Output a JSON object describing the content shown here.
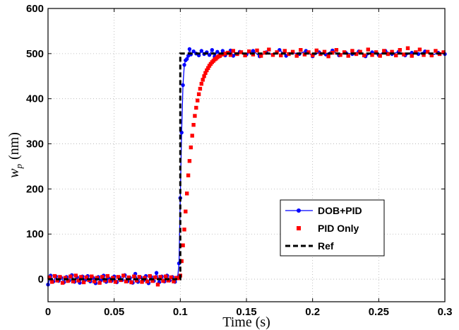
{
  "chart_data": {
    "type": "line",
    "title": "",
    "xlabel": "Time (s)",
    "ylabel_main": "w",
    "ylabel_sub": "p",
    "ylabel_unit": "(nm)",
    "xlim": [
      0,
      0.3
    ],
    "ylim": [
      -50,
      600
    ],
    "x_ticks": [
      0,
      0.05,
      0.1,
      0.15,
      0.2,
      0.25,
      0.3
    ],
    "x_tick_labels": [
      "0",
      "0.05",
      "0.1",
      "0.15",
      "0.2",
      "0.25",
      "0.3"
    ],
    "y_ticks": [
      0,
      100,
      200,
      300,
      400,
      500,
      600
    ],
    "y_tick_labels": [
      "0",
      "100",
      "200",
      "300",
      "400",
      "500",
      "600"
    ],
    "grid": true,
    "legend_position": "lower-right",
    "series": [
      {
        "name": "DOB+PID",
        "color": "#0000ff",
        "style": "solid-line-with-dots",
        "points": [
          [
            0.0,
            -12
          ],
          [
            0.002,
            8
          ],
          [
            0.004,
            -5
          ],
          [
            0.006,
            6
          ],
          [
            0.008,
            -4
          ],
          [
            0.01,
            3
          ],
          [
            0.012,
            -7
          ],
          [
            0.014,
            5
          ],
          [
            0.016,
            -3
          ],
          [
            0.018,
            9
          ],
          [
            0.02,
            -6
          ],
          [
            0.022,
            4
          ],
          [
            0.024,
            -8
          ],
          [
            0.026,
            6
          ],
          [
            0.028,
            -2
          ],
          [
            0.03,
            7
          ],
          [
            0.032,
            -5
          ],
          [
            0.034,
            3
          ],
          [
            0.036,
            -9
          ],
          [
            0.038,
            5
          ],
          [
            0.04,
            -3
          ],
          [
            0.042,
            8
          ],
          [
            0.044,
            -6
          ],
          [
            0.046,
            2
          ],
          [
            0.048,
            -4
          ],
          [
            0.05,
            6
          ],
          [
            0.052,
            -7
          ],
          [
            0.054,
            4
          ],
          [
            0.056,
            -2
          ],
          [
            0.058,
            9
          ],
          [
            0.06,
            -5
          ],
          [
            0.062,
            3
          ],
          [
            0.064,
            -8
          ],
          [
            0.066,
            12
          ],
          [
            0.068,
            -6
          ],
          [
            0.07,
            4
          ],
          [
            0.072,
            -3
          ],
          [
            0.074,
            7
          ],
          [
            0.076,
            -9
          ],
          [
            0.078,
            5
          ],
          [
            0.08,
            -4
          ],
          [
            0.082,
            14
          ],
          [
            0.084,
            -7
          ],
          [
            0.086,
            6
          ],
          [
            0.088,
            -5
          ],
          [
            0.09,
            8
          ],
          [
            0.092,
            -3
          ],
          [
            0.094,
            5
          ],
          [
            0.096,
            -6
          ],
          [
            0.098,
            4
          ],
          [
            0.099,
            35
          ],
          [
            0.1,
            180
          ],
          [
            0.101,
            325
          ],
          [
            0.102,
            430
          ],
          [
            0.103,
            475
          ],
          [
            0.104,
            485
          ],
          [
            0.105,
            488
          ],
          [
            0.106,
            495
          ],
          [
            0.107,
            510
          ],
          [
            0.108,
            498
          ],
          [
            0.11,
            505
          ],
          [
            0.112,
            500
          ],
          [
            0.114,
            496
          ],
          [
            0.116,
            506
          ],
          [
            0.118,
            499
          ],
          [
            0.12,
            503
          ],
          [
            0.122,
            497
          ],
          [
            0.124,
            508
          ],
          [
            0.126,
            494
          ],
          [
            0.128,
            504
          ],
          [
            0.13,
            498
          ],
          [
            0.132,
            506
          ],
          [
            0.134,
            496
          ],
          [
            0.136,
            502
          ],
          [
            0.138,
            507
          ],
          [
            0.14,
            495
          ],
          [
            0.145,
            504
          ],
          [
            0.15,
            498
          ],
          [
            0.155,
            506
          ],
          [
            0.16,
            494
          ],
          [
            0.165,
            503
          ],
          [
            0.17,
            497
          ],
          [
            0.175,
            508
          ],
          [
            0.18,
            495
          ],
          [
            0.185,
            502
          ],
          [
            0.19,
            499
          ],
          [
            0.195,
            506
          ],
          [
            0.2,
            494
          ],
          [
            0.205,
            503
          ],
          [
            0.21,
            498
          ],
          [
            0.215,
            507
          ],
          [
            0.22,
            496
          ],
          [
            0.225,
            502
          ],
          [
            0.23,
            499
          ],
          [
            0.235,
            505
          ],
          [
            0.24,
            494
          ],
          [
            0.245,
            503
          ],
          [
            0.25,
            497
          ],
          [
            0.255,
            506
          ],
          [
            0.26,
            499
          ],
          [
            0.265,
            504
          ],
          [
            0.27,
            496
          ],
          [
            0.275,
            502
          ],
          [
            0.28,
            499
          ],
          [
            0.285,
            505
          ],
          [
            0.29,
            496
          ],
          [
            0.295,
            502
          ],
          [
            0.3,
            499
          ]
        ]
      },
      {
        "name": "PID Only",
        "color": "#ff0000",
        "style": "square-markers",
        "points": [
          [
            0.001,
            4
          ],
          [
            0.003,
            -6
          ],
          [
            0.005,
            7
          ],
          [
            0.007,
            -3
          ],
          [
            0.009,
            5
          ],
          [
            0.011,
            -8
          ],
          [
            0.013,
            3
          ],
          [
            0.015,
            -4
          ],
          [
            0.017,
            6
          ],
          [
            0.019,
            -5
          ],
          [
            0.021,
            8
          ],
          [
            0.023,
            -3
          ],
          [
            0.025,
            5
          ],
          [
            0.027,
            -7
          ],
          [
            0.029,
            4
          ],
          [
            0.031,
            -2
          ],
          [
            0.033,
            6
          ],
          [
            0.035,
            -5
          ],
          [
            0.037,
            3
          ],
          [
            0.039,
            -8
          ],
          [
            0.041,
            5
          ],
          [
            0.043,
            -3
          ],
          [
            0.045,
            7
          ],
          [
            0.047,
            -4
          ],
          [
            0.049,
            3
          ],
          [
            0.051,
            -6
          ],
          [
            0.053,
            5
          ],
          [
            0.055,
            -2
          ],
          [
            0.057,
            8
          ],
          [
            0.059,
            -5
          ],
          [
            0.061,
            4
          ],
          [
            0.063,
            -7
          ],
          [
            0.065,
            6
          ],
          [
            0.067,
            -3
          ],
          [
            0.069,
            5
          ],
          [
            0.071,
            -6
          ],
          [
            0.073,
            3
          ],
          [
            0.075,
            -5
          ],
          [
            0.077,
            7
          ],
          [
            0.079,
            -4
          ],
          [
            0.081,
            4
          ],
          [
            0.083,
            -12
          ],
          [
            0.085,
            5
          ],
          [
            0.087,
            -4
          ],
          [
            0.089,
            6
          ],
          [
            0.091,
            -3
          ],
          [
            0.093,
            4
          ],
          [
            0.095,
            -5
          ],
          [
            0.097,
            3
          ],
          [
            0.099,
            2
          ],
          [
            0.1,
            8
          ],
          [
            0.101,
            40
          ],
          [
            0.102,
            75
          ],
          [
            0.103,
            110
          ],
          [
            0.104,
            150
          ],
          [
            0.105,
            190
          ],
          [
            0.106,
            230
          ],
          [
            0.107,
            262
          ],
          [
            0.108,
            292
          ],
          [
            0.109,
            318
          ],
          [
            0.11,
            342
          ],
          [
            0.111,
            362
          ],
          [
            0.112,
            380
          ],
          [
            0.113,
            396
          ],
          [
            0.114,
            410
          ],
          [
            0.115,
            422
          ],
          [
            0.116,
            433
          ],
          [
            0.117,
            442
          ],
          [
            0.118,
            450
          ],
          [
            0.119,
            457
          ],
          [
            0.12,
            463
          ],
          [
            0.121,
            468
          ],
          [
            0.122,
            473
          ],
          [
            0.123,
            477
          ],
          [
            0.124,
            481
          ],
          [
            0.125,
            484
          ],
          [
            0.126,
            487
          ],
          [
            0.127,
            489
          ],
          [
            0.128,
            492
          ],
          [
            0.129,
            494
          ],
          [
            0.13,
            495
          ],
          [
            0.132,
            498
          ],
          [
            0.134,
            500
          ],
          [
            0.136,
            502
          ],
          [
            0.138,
            497
          ],
          [
            0.14,
            506
          ],
          [
            0.143,
            499
          ],
          [
            0.146,
            503
          ],
          [
            0.149,
            496
          ],
          [
            0.152,
            505
          ],
          [
            0.155,
            498
          ],
          [
            0.158,
            507
          ],
          [
            0.161,
            495
          ],
          [
            0.164,
            502
          ],
          [
            0.167,
            509
          ],
          [
            0.17,
            497
          ],
          [
            0.173,
            503
          ],
          [
            0.176,
            496
          ],
          [
            0.179,
            506
          ],
          [
            0.182,
            499
          ],
          [
            0.185,
            504
          ],
          [
            0.188,
            495
          ],
          [
            0.191,
            508
          ],
          [
            0.194,
            498
          ],
          [
            0.197,
            503
          ],
          [
            0.2,
            496
          ],
          [
            0.203,
            507
          ],
          [
            0.206,
            499
          ],
          [
            0.209,
            504
          ],
          [
            0.212,
            494
          ],
          [
            0.215,
            502
          ],
          [
            0.218,
            508
          ],
          [
            0.221,
            497
          ],
          [
            0.224,
            503
          ],
          [
            0.227,
            495
          ],
          [
            0.23,
            506
          ],
          [
            0.233,
            499
          ],
          [
            0.236,
            504
          ],
          [
            0.239,
            496
          ],
          [
            0.242,
            509
          ],
          [
            0.245,
            497
          ],
          [
            0.248,
            503
          ],
          [
            0.251,
            495
          ],
          [
            0.254,
            506
          ],
          [
            0.257,
            499
          ],
          [
            0.26,
            504
          ],
          [
            0.263,
            496
          ],
          [
            0.266,
            508
          ],
          [
            0.269,
            498
          ],
          [
            0.272,
            512
          ],
          [
            0.275,
            495
          ],
          [
            0.278,
            503
          ],
          [
            0.281,
            509
          ],
          [
            0.284,
            497
          ],
          [
            0.287,
            504
          ],
          [
            0.29,
            496
          ],
          [
            0.293,
            506
          ],
          [
            0.296,
            499
          ],
          [
            0.299,
            503
          ]
        ]
      },
      {
        "name": "Ref",
        "color": "#000000",
        "style": "dashed-line",
        "points": [
          [
            0,
            0
          ],
          [
            0.1,
            0
          ],
          [
            0.1,
            500
          ],
          [
            0.3,
            500
          ]
        ]
      }
    ]
  }
}
